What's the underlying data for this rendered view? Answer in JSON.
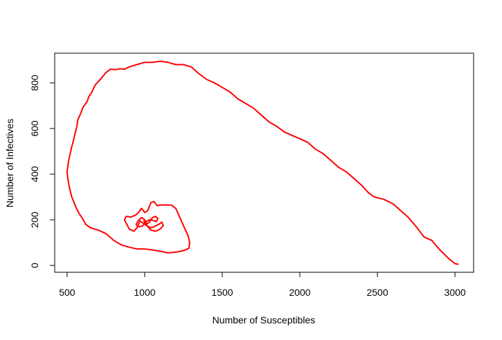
{
  "chart_data": {
    "type": "line",
    "title": "",
    "xlabel": "Number of Susceptibles",
    "ylabel": "Number of Infectives",
    "xlim": [
      420,
      3120
    ],
    "ylim": [
      -30,
      930
    ],
    "x_ticks": [
      500,
      1000,
      1500,
      2000,
      2500,
      3000
    ],
    "y_ticks": [
      0,
      200,
      400,
      600,
      800
    ],
    "grid": false,
    "legend": "none",
    "series": [
      {
        "color": "#ff0000",
        "points": [
          [
            3020,
            5
          ],
          [
            3000,
            8
          ],
          [
            2960,
            30
          ],
          [
            2900,
            70
          ],
          [
            2850,
            110
          ],
          [
            2800,
            125
          ],
          [
            2750,
            170
          ],
          [
            2700,
            210
          ],
          [
            2650,
            240
          ],
          [
            2600,
            270
          ],
          [
            2540,
            290
          ],
          [
            2480,
            300
          ],
          [
            2440,
            320
          ],
          [
            2400,
            350
          ],
          [
            2350,
            380
          ],
          [
            2300,
            410
          ],
          [
            2250,
            430
          ],
          [
            2200,
            460
          ],
          [
            2150,
            490
          ],
          [
            2100,
            510
          ],
          [
            2050,
            540
          ],
          [
            2000,
            555
          ],
          [
            1950,
            570
          ],
          [
            1900,
            585
          ],
          [
            1850,
            610
          ],
          [
            1800,
            630
          ],
          [
            1750,
            660
          ],
          [
            1700,
            690
          ],
          [
            1650,
            710
          ],
          [
            1600,
            730
          ],
          [
            1550,
            760
          ],
          [
            1500,
            780
          ],
          [
            1450,
            800
          ],
          [
            1400,
            815
          ],
          [
            1350,
            840
          ],
          [
            1300,
            870
          ],
          [
            1250,
            880
          ],
          [
            1200,
            880
          ],
          [
            1150,
            890
          ],
          [
            1100,
            895
          ],
          [
            1050,
            890
          ],
          [
            1000,
            890
          ],
          [
            950,
            880
          ],
          [
            900,
            870
          ],
          [
            870,
            860
          ],
          [
            840,
            862
          ],
          [
            810,
            858
          ],
          [
            780,
            860
          ],
          [
            750,
            845
          ],
          [
            720,
            820
          ],
          [
            700,
            805
          ],
          [
            680,
            790
          ],
          [
            660,
            760
          ],
          [
            640,
            740
          ],
          [
            630,
            720
          ],
          [
            600,
            690
          ],
          [
            590,
            670
          ],
          [
            570,
            640
          ],
          [
            560,
            600
          ],
          [
            550,
            575
          ],
          [
            540,
            545
          ],
          [
            530,
            520
          ],
          [
            520,
            490
          ],
          [
            510,
            460
          ],
          [
            505,
            435
          ],
          [
            500,
            410
          ],
          [
            505,
            380
          ],
          [
            515,
            340
          ],
          [
            530,
            300
          ],
          [
            545,
            275
          ],
          [
            560,
            250
          ],
          [
            580,
            225
          ],
          [
            600,
            205
          ],
          [
            620,
            180
          ],
          [
            650,
            165
          ],
          [
            700,
            155
          ],
          [
            750,
            140
          ],
          [
            800,
            110
          ],
          [
            850,
            90
          ],
          [
            900,
            80
          ],
          [
            950,
            72
          ],
          [
            1000,
            72
          ],
          [
            1050,
            68
          ],
          [
            1100,
            62
          ],
          [
            1150,
            55
          ],
          [
            1200,
            58
          ],
          [
            1250,
            65
          ],
          [
            1285,
            75
          ],
          [
            1290,
            100
          ],
          [
            1280,
            130
          ],
          [
            1260,
            160
          ],
          [
            1240,
            190
          ],
          [
            1220,
            220
          ],
          [
            1200,
            250
          ],
          [
            1170,
            265
          ],
          [
            1140,
            265
          ],
          [
            1100,
            265
          ],
          [
            1080,
            262
          ],
          [
            1060,
            280
          ],
          [
            1040,
            275
          ],
          [
            1020,
            240
          ],
          [
            1000,
            232
          ],
          [
            980,
            250
          ],
          [
            960,
            232
          ],
          [
            940,
            220
          ],
          [
            910,
            212
          ],
          [
            880,
            215
          ],
          [
            870,
            200
          ],
          [
            885,
            180
          ],
          [
            900,
            160
          ],
          [
            930,
            150
          ],
          [
            950,
            165
          ],
          [
            970,
            195
          ],
          [
            990,
            185
          ],
          [
            1010,
            175
          ],
          [
            1040,
            165
          ],
          [
            1060,
            170
          ],
          [
            1090,
            180
          ],
          [
            1110,
            190
          ],
          [
            1120,
            175
          ],
          [
            1100,
            160
          ],
          [
            1070,
            150
          ],
          [
            1040,
            155
          ],
          [
            1020,
            170
          ],
          [
            1000,
            200
          ],
          [
            980,
            210
          ],
          [
            960,
            198
          ],
          [
            945,
            180
          ],
          [
            960,
            170
          ],
          [
            985,
            172
          ],
          [
            1005,
            190
          ],
          [
            1030,
            200
          ],
          [
            1050,
            198
          ],
          [
            1075,
            192
          ],
          [
            1085,
            205
          ],
          [
            1070,
            215
          ],
          [
            1050,
            210
          ],
          [
            1030,
            190
          ],
          [
            1010,
            180
          ],
          [
            995,
            195
          ]
        ]
      }
    ]
  }
}
